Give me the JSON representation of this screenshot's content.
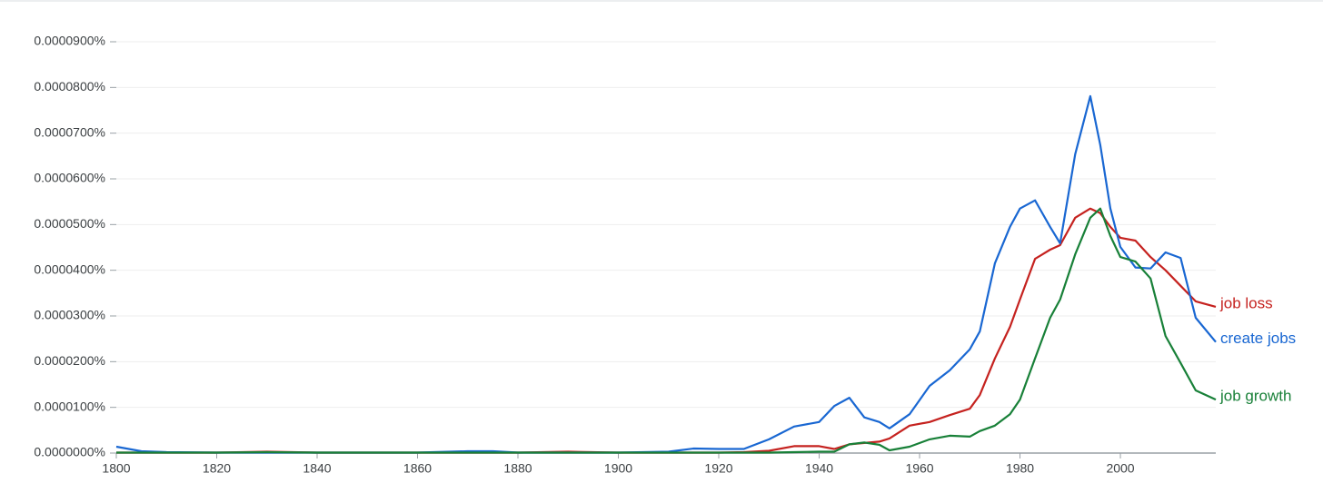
{
  "chart_data": {
    "type": "line",
    "x": [
      1800,
      1805,
      1810,
      1820,
      1830,
      1840,
      1850,
      1860,
      1870,
      1875,
      1880,
      1890,
      1900,
      1910,
      1915,
      1920,
      1925,
      1930,
      1935,
      1940,
      1943,
      1946,
      1949,
      1952,
      1954,
      1958,
      1962,
      1966,
      1970,
      1972,
      1975,
      1978,
      1980,
      1983,
      1986,
      1988,
      1991,
      1994,
      1996,
      1998,
      2000,
      2003,
      2006,
      2009,
      2012,
      2015,
      2019
    ],
    "xlim": [
      1800,
      2019
    ],
    "xticks": [
      1800,
      1820,
      1840,
      1860,
      1880,
      1900,
      1920,
      1940,
      1960,
      1980,
      2000
    ],
    "ylim": [
      0,
      9e-05
    ],
    "yticks": [
      {
        "value": 0,
        "label": "0.0000000%"
      },
      {
        "value": 1e-05,
        "label": "0.0000100%"
      },
      {
        "value": 2e-05,
        "label": "0.0000200%"
      },
      {
        "value": 3e-05,
        "label": "0.0000300%"
      },
      {
        "value": 4e-05,
        "label": "0.0000400%"
      },
      {
        "value": 5e-05,
        "label": "0.0000500%"
      },
      {
        "value": 6e-05,
        "label": "0.0000600%"
      },
      {
        "value": 7e-05,
        "label": "0.0000700%"
      },
      {
        "value": 8e-05,
        "label": "0.0000800%"
      },
      {
        "value": 9e-05,
        "label": "0.0000900%"
      }
    ],
    "grid": true,
    "series": [
      {
        "name": "job loss",
        "color": "#c5221f",
        "values": [
          1e-07,
          1e-07,
          1e-07,
          1e-07,
          3e-07,
          1e-07,
          1e-07,
          1e-07,
          1e-07,
          1e-07,
          1e-07,
          3e-07,
          1e-07,
          1e-07,
          1e-07,
          1e-07,
          2e-07,
          5e-07,
          1.5e-06,
          1.5e-06,
          9e-07,
          1.9e-06,
          2.2e-06,
          2.5e-06,
          3.2e-06,
          6e-06,
          6.8e-06,
          8.3e-06,
          9.7e-06,
          1.27e-05,
          2.07e-05,
          2.76e-05,
          3.36e-05,
          4.25e-05,
          4.45e-05,
          4.55e-05,
          5.15e-05,
          5.35e-05,
          5.25e-05,
          4.95e-05,
          4.71e-05,
          4.65e-05,
          4.29e-05,
          4e-05,
          3.66e-05,
          3.32e-05,
          3.2e-05
        ]
      },
      {
        "name": "create jobs",
        "color": "#1967d2",
        "values": [
          1.4e-06,
          4e-07,
          2e-07,
          1e-07,
          1e-07,
          1e-07,
          1e-07,
          1e-07,
          4e-07,
          4e-07,
          1e-07,
          1e-07,
          1e-07,
          3e-07,
          1e-06,
          9e-07,
          9e-07,
          3e-06,
          5.8e-06,
          6.8e-06,
          1.03e-05,
          1.21e-05,
          7.8e-06,
          6.8e-06,
          5.4e-06,
          8.5e-06,
          1.47e-05,
          1.81e-05,
          2.27e-05,
          2.66e-05,
          4.15e-05,
          4.95e-05,
          5.35e-05,
          5.53e-05,
          4.95e-05,
          4.59e-05,
          6.54e-05,
          7.81e-05,
          6.74e-05,
          5.35e-05,
          4.51e-05,
          4.06e-05,
          4.04e-05,
          4.39e-05,
          4.27e-05,
          2.96e-05,
          2.43e-05
        ]
      },
      {
        "name": "job growth",
        "color": "#188038",
        "values": [
          1e-07,
          1e-07,
          1e-07,
          1e-07,
          2e-07,
          1e-07,
          1e-07,
          1e-07,
          1e-07,
          1e-07,
          1e-07,
          1e-07,
          1e-07,
          1e-07,
          1e-07,
          1e-07,
          1e-07,
          1e-07,
          2e-07,
          3e-07,
          3e-07,
          1.9e-06,
          2.3e-06,
          1.8e-06,
          6e-07,
          1.4e-06,
          3e-06,
          3.8e-06,
          3.6e-06,
          4.8e-06,
          6e-06,
          8.5e-06,
          1.17e-05,
          2.07e-05,
          2.96e-05,
          3.36e-05,
          4.35e-05,
          5.15e-05,
          5.35e-05,
          4.75e-05,
          4.29e-05,
          4.19e-05,
          3.82e-05,
          2.56e-05,
          1.97e-05,
          1.37e-05,
          1.17e-05
        ]
      }
    ]
  }
}
